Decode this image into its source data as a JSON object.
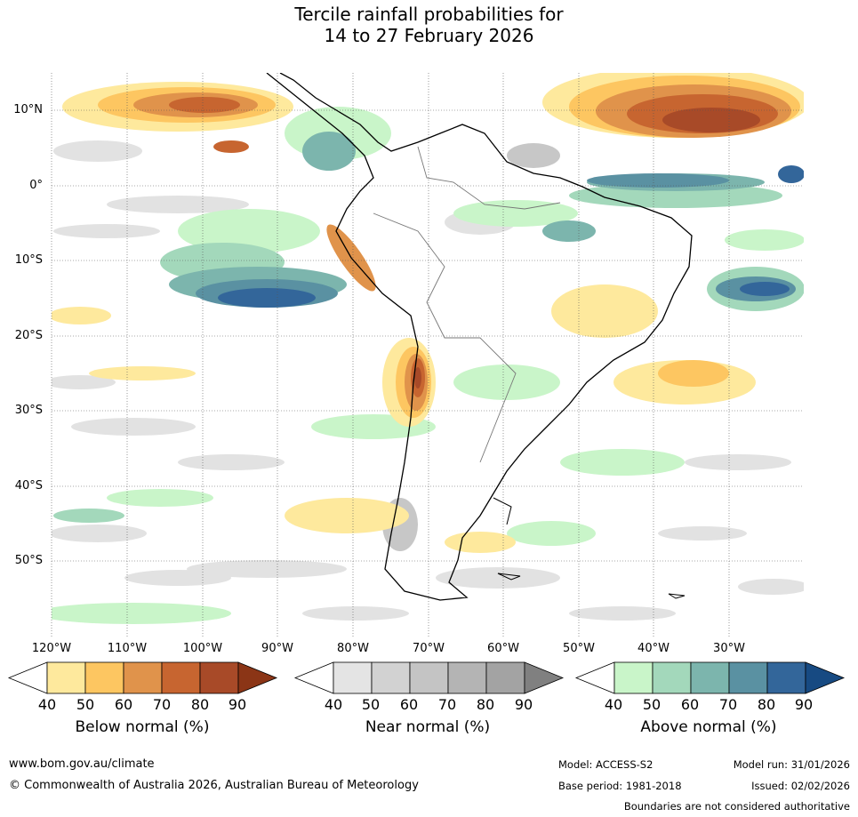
{
  "title": {
    "line1": "Tercile rainfall probabilities for",
    "line2": "14 to 27 February 2026"
  },
  "map": {
    "lat_labels": [
      "10°N",
      "0°",
      "10°S",
      "20°S",
      "30°S",
      "40°S",
      "50°S"
    ],
    "lon_labels": [
      "120°W",
      "110°W",
      "100°W",
      "90°W",
      "80°W",
      "70°W",
      "60°W",
      "50°W",
      "40°W",
      "30°W"
    ]
  },
  "colorbars": [
    {
      "name": "below",
      "title": "Below normal (%)",
      "ticks": [
        "40",
        "50",
        "60",
        "70",
        "80",
        "90"
      ],
      "colors": [
        "#ffffff",
        "#fee99d",
        "#fdc661",
        "#e0934b",
        "#c76530",
        "#a84a28",
        "#8b3516"
      ]
    },
    {
      "name": "near",
      "title": "Near normal (%)",
      "ticks": [
        "40",
        "50",
        "60",
        "70",
        "80",
        "90"
      ],
      "colors": [
        "#ffffff",
        "#e4e4e4",
        "#d2d2d2",
        "#c4c4c4",
        "#b4b4b4",
        "#a3a3a3",
        "#808080"
      ]
    },
    {
      "name": "above",
      "title": "Above normal (%)",
      "ticks": [
        "40",
        "50",
        "60",
        "70",
        "80",
        "90"
      ],
      "colors": [
        "#ffffff",
        "#c9f5c9",
        "#a3d8bb",
        "#7cb5ad",
        "#5a91a2",
        "#33669a",
        "#174a82"
      ]
    }
  ],
  "footer": {
    "website": "www.bom.gov.au/climate",
    "copyright": "© Commonwealth of Australia 2026, Australian Bureau of Meteorology",
    "model": "Model: ACCESS-S2",
    "model_run": "Model run: 31/01/2026",
    "base_period": "Base period: 1981-2018",
    "issued": "Issued: 02/02/2026",
    "disclaimer": "Boundaries are not considered authoritative"
  }
}
